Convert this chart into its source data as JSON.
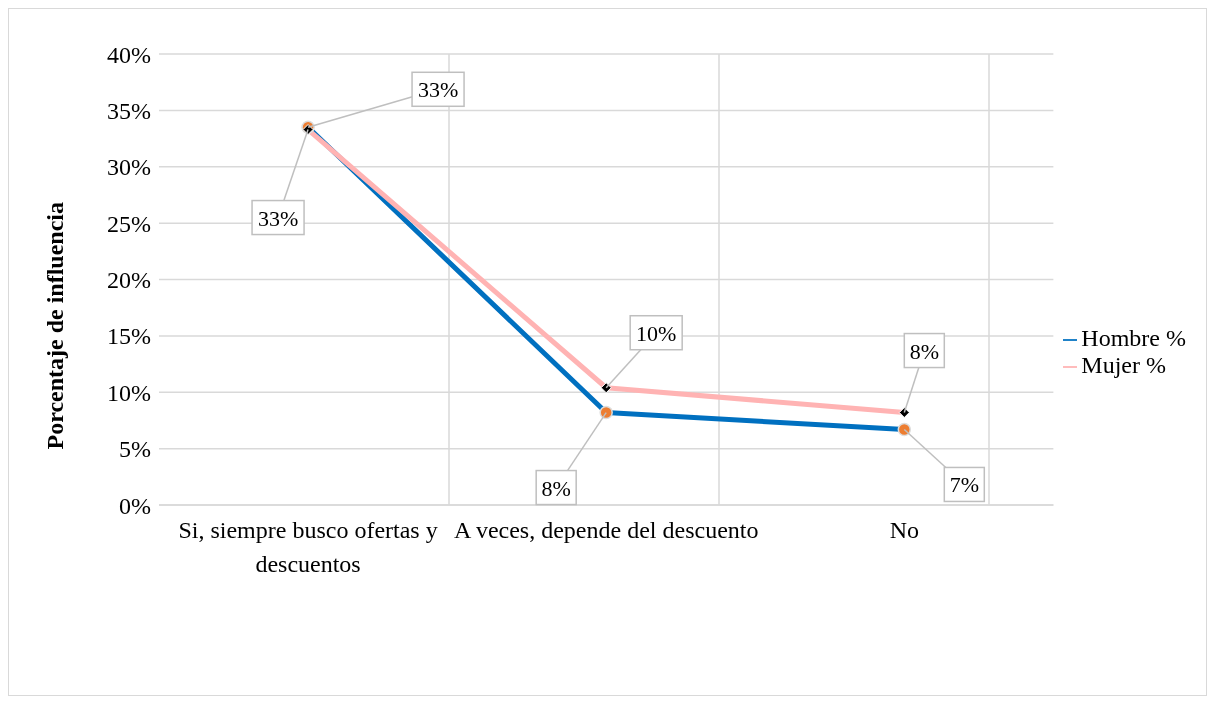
{
  "chart_data": {
    "type": "line",
    "ylabel": "Porcentaje de influencia",
    "categories": [
      "Si, siempre busco ofertas y descuentos",
      "A veces, depende del descuento",
      "No"
    ],
    "series": [
      {
        "name": "Hombre %",
        "color": "#0070c0",
        "colors": [
          "#ed7d31",
          "#ed7d31",
          "#ed7d31"
        ],
        "marker": "circle",
        "values": [
          33.5,
          8.2,
          6.7
        ],
        "value_labels": [
          "33%",
          "8%",
          "7%"
        ]
      },
      {
        "name": "Mujer  %",
        "color": "#ffb3b3",
        "colors": [
          "#000000",
          "#000000",
          "#000000"
        ],
        "marker": "diamond",
        "values": [
          33.3,
          10.4,
          8.2
        ],
        "value_labels": [
          "33%",
          "10%",
          "8%"
        ]
      }
    ],
    "ylim": [
      0,
      40
    ],
    "yticks": [
      {
        "value": 0,
        "label": "0%"
      },
      {
        "value": 5,
        "label": "5%"
      },
      {
        "value": 10,
        "label": "10%"
      },
      {
        "value": 15,
        "label": "15%"
      },
      {
        "value": 20,
        "label": "20%"
      },
      {
        "value": 25,
        "label": "25%"
      },
      {
        "value": 30,
        "label": "30%"
      },
      {
        "value": 35,
        "label": "35%"
      },
      {
        "value": 40,
        "label": "40%"
      }
    ],
    "grid": true,
    "legend": "right"
  }
}
